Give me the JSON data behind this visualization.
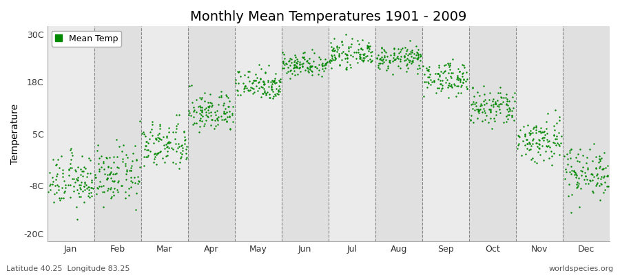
{
  "title": "Monthly Mean Temperatures 1901 - 2009",
  "ylabel": "Temperature",
  "yticks": [
    -20,
    -8,
    5,
    18,
    30
  ],
  "ytick_labels": [
    "-20C",
    "-8C",
    "5C",
    "18C",
    "30C"
  ],
  "ylim": [
    -22,
    32
  ],
  "months": [
    "Jan",
    "Feb",
    "Mar",
    "Apr",
    "May",
    "Jun",
    "Jul",
    "Aug",
    "Sep",
    "Oct",
    "Nov",
    "Dec"
  ],
  "dot_color": "#008800",
  "background_color_light": "#EBEBEB",
  "background_color_dark": "#E0E0E0",
  "fig_background": "#FFFFFF",
  "subtitle_left": "Latitude 40.25  Longitude 83.25",
  "subtitle_right": "worldspecies.org",
  "legend_label": "Mean Temp",
  "monthly_means": [
    -7.0,
    -5.5,
    2.0,
    10.5,
    17.5,
    22.5,
    25.0,
    24.0,
    19.0,
    11.5,
    3.5,
    -4.5
  ],
  "monthly_stds": [
    3.2,
    3.5,
    3.0,
    2.5,
    2.0,
    1.5,
    1.5,
    1.5,
    2.0,
    2.5,
    3.0,
    3.2
  ],
  "n_years": 109,
  "title_fontsize": 14,
  "axis_label_fontsize": 10,
  "tick_fontsize": 9,
  "annotation_fontsize": 8
}
